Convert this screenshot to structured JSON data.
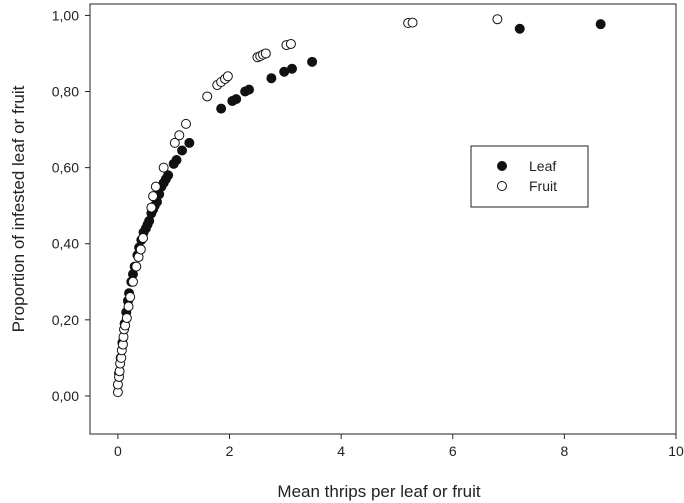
{
  "chart_data": {
    "type": "scatter",
    "xlabel": "Mean thrips per leaf or fruit",
    "ylabel": "Proportion of infested leaf or fruit",
    "xlim": [
      -0.5,
      10
    ],
    "ylim": [
      -0.1,
      1.03
    ],
    "xticks": [
      0,
      2,
      4,
      6,
      8,
      10
    ],
    "xtick_labels": [
      "0",
      "2",
      "4",
      "6",
      "8",
      "10"
    ],
    "yticks": [
      0,
      0.2,
      0.4,
      0.6,
      0.8,
      1.0
    ],
    "ytick_labels": [
      "0,00",
      "0,20",
      "0,40",
      "0,60",
      "0,80",
      "1,00"
    ],
    "grid": false,
    "legend_position": "center-right",
    "series": [
      {
        "name": "Leaf",
        "marker": "filled-circle",
        "color": "#111111",
        "points": [
          [
            0.02,
            0.06
          ],
          [
            0.05,
            0.1
          ],
          [
            0.08,
            0.14
          ],
          [
            0.12,
            0.19
          ],
          [
            0.15,
            0.22
          ],
          [
            0.18,
            0.25
          ],
          [
            0.2,
            0.27
          ],
          [
            0.24,
            0.3
          ],
          [
            0.27,
            0.32
          ],
          [
            0.3,
            0.34
          ],
          [
            0.35,
            0.37
          ],
          [
            0.38,
            0.39
          ],
          [
            0.42,
            0.41
          ],
          [
            0.46,
            0.43
          ],
          [
            0.5,
            0.44
          ],
          [
            0.53,
            0.45
          ],
          [
            0.56,
            0.46
          ],
          [
            0.6,
            0.48
          ],
          [
            0.63,
            0.49
          ],
          [
            0.66,
            0.5
          ],
          [
            0.7,
            0.51
          ],
          [
            0.74,
            0.53
          ],
          [
            0.78,
            0.55
          ],
          [
            0.82,
            0.56
          ],
          [
            0.86,
            0.57
          ],
          [
            0.9,
            0.58
          ],
          [
            1.0,
            0.61
          ],
          [
            1.05,
            0.62
          ],
          [
            1.15,
            0.645
          ],
          [
            1.28,
            0.665
          ],
          [
            1.85,
            0.755
          ],
          [
            2.05,
            0.775
          ],
          [
            2.12,
            0.78
          ],
          [
            2.28,
            0.8
          ],
          [
            2.35,
            0.805
          ],
          [
            2.75,
            0.835
          ],
          [
            2.98,
            0.852
          ],
          [
            3.12,
            0.86
          ],
          [
            3.48,
            0.878
          ],
          [
            7.2,
            0.965
          ],
          [
            8.65,
            0.977
          ]
        ]
      },
      {
        "name": "Fruit",
        "marker": "open-circle",
        "color": "#111111",
        "points": [
          [
            0.0,
            0.01
          ],
          [
            0.0,
            0.03
          ],
          [
            0.02,
            0.05
          ],
          [
            0.03,
            0.065
          ],
          [
            0.04,
            0.085
          ],
          [
            0.06,
            0.1
          ],
          [
            0.07,
            0.12
          ],
          [
            0.09,
            0.135
          ],
          [
            0.1,
            0.155
          ],
          [
            0.11,
            0.175
          ],
          [
            0.13,
            0.185
          ],
          [
            0.16,
            0.205
          ],
          [
            0.19,
            0.235
          ],
          [
            0.22,
            0.26
          ],
          [
            0.27,
            0.3
          ],
          [
            0.33,
            0.34
          ],
          [
            0.37,
            0.365
          ],
          [
            0.41,
            0.385
          ],
          [
            0.45,
            0.415
          ],
          [
            0.6,
            0.495
          ],
          [
            0.63,
            0.525
          ],
          [
            0.68,
            0.55
          ],
          [
            0.82,
            0.6
          ],
          [
            1.02,
            0.665
          ],
          [
            1.1,
            0.685
          ],
          [
            1.22,
            0.715
          ],
          [
            1.6,
            0.787
          ],
          [
            1.78,
            0.817
          ],
          [
            1.85,
            0.825
          ],
          [
            1.92,
            0.833
          ],
          [
            1.97,
            0.84
          ],
          [
            2.5,
            0.89
          ],
          [
            2.55,
            0.893
          ],
          [
            2.6,
            0.897
          ],
          [
            2.65,
            0.9
          ],
          [
            3.02,
            0.922
          ],
          [
            3.1,
            0.925
          ],
          [
            5.2,
            0.98
          ],
          [
            5.28,
            0.981
          ],
          [
            6.8,
            0.99
          ]
        ]
      }
    ]
  }
}
